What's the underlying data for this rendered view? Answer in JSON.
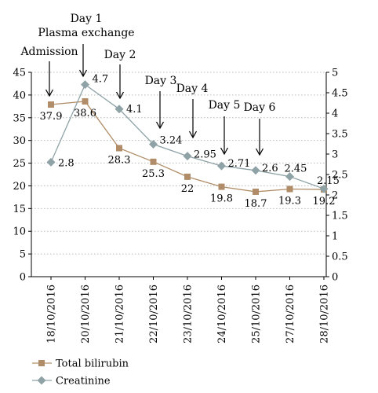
{
  "chart_data": {
    "type": "line",
    "title": "",
    "xlabel": "",
    "ylabel": "",
    "y2label": "",
    "categories": [
      "18/10/2016",
      "20/10/2016",
      "21/10/2016",
      "22/10/2016",
      "23/10/2016",
      "24/10/2016",
      "25/10/2016",
      "27/10/2016",
      "28/10/2016"
    ],
    "ylim": [
      0,
      45
    ],
    "y_ticks": [
      0,
      5,
      10,
      15,
      20,
      25,
      30,
      35,
      40,
      45
    ],
    "y2lim": [
      0,
      5
    ],
    "y2_ticks": [
      "0",
      "0.5",
      "1",
      "1.5",
      "2",
      "2.5",
      "3",
      "3.5",
      "4",
      "4.5",
      "5"
    ],
    "grid": "horizontal dotted",
    "legend_position": "bottom-left",
    "series": [
      {
        "name": "Total bilirubin",
        "axis": "left",
        "marker": "square",
        "color": "#b08d68",
        "values": [
          37.9,
          38.6,
          28.3,
          25.3,
          22,
          19.8,
          18.7,
          19.3,
          19.2
        ],
        "labels": [
          "37.9",
          "38.6",
          "28.3",
          "25.3",
          "22",
          "19.8",
          "18.7",
          "19.3",
          "19.2"
        ]
      },
      {
        "name": "Creatinine",
        "axis": "right",
        "marker": "diamond",
        "color": "#8fa2a5",
        "values": [
          2.8,
          4.7,
          4.1,
          3.24,
          2.95,
          2.71,
          2.6,
          2.45,
          2.15
        ],
        "labels": [
          "2.8",
          "4.7",
          "4.1",
          "3.24",
          "2.95",
          "2.71",
          "2.6",
          "2.45",
          "2.15"
        ]
      }
    ],
    "annotations": [
      {
        "lines": [
          "Admission"
        ],
        "category_index": 0
      },
      {
        "lines": [
          "Day 1",
          "Plasma exchange"
        ],
        "category_index": 1
      },
      {
        "lines": [
          "Day 2"
        ],
        "category_index": 2
      },
      {
        "lines": [
          "Day 3"
        ],
        "category_index": 3
      },
      {
        "lines": [
          "Day 4"
        ],
        "category_index": 4
      },
      {
        "lines": [
          "Day 5"
        ],
        "category_index": 5
      },
      {
        "lines": [
          "Day 6"
        ],
        "category_index": 6
      }
    ]
  }
}
